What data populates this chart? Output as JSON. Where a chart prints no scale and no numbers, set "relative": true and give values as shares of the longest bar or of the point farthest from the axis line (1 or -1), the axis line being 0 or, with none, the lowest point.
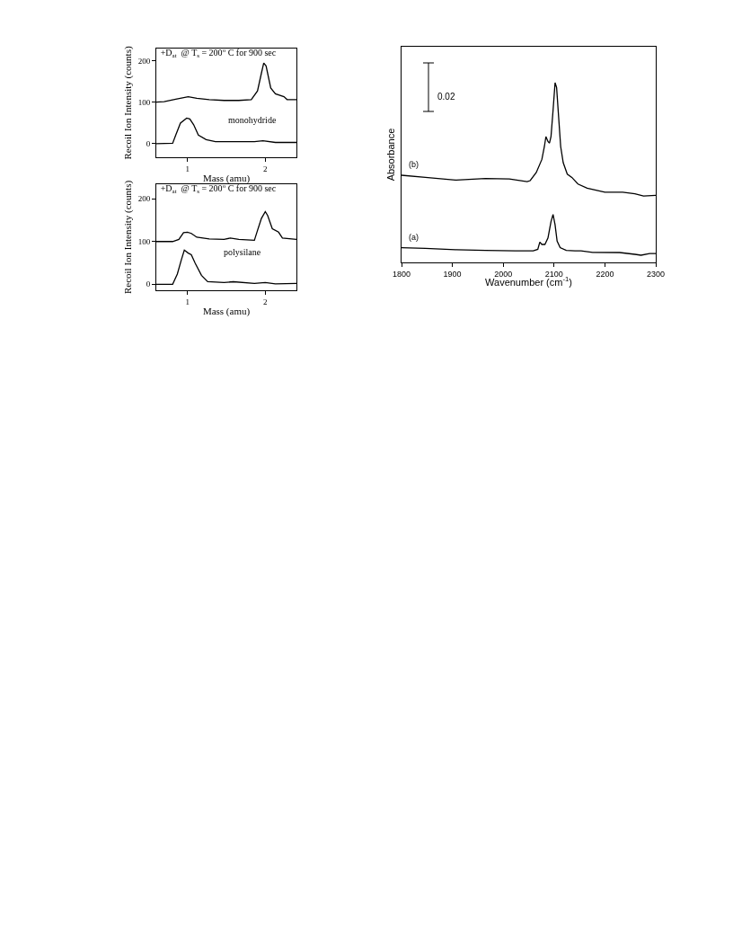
{
  "chart_data": [
    {
      "type": "line",
      "title": "+D$_{at}$  @ T$_{s}$ = 200$^{o}$ C for 900 sec",
      "xlabel": "Mass (amu)",
      "ylabel": "Recoil Ion Intensity (counts)",
      "xlim": [
        0.6,
        2.4
      ],
      "ylim": [
        -34,
        230
      ],
      "xticks": [
        1,
        2
      ],
      "yticks": [
        0,
        100,
        200
      ],
      "annotations": [
        "monohydride"
      ],
      "series": [
        {
          "color": "#000000",
          "x": [
            0.6,
            0.7,
            0.85,
            1.01,
            1.12,
            1.28,
            1.47,
            1.66,
            1.82,
            1.9,
            1.95,
            1.98,
            2.01,
            2.07,
            2.13,
            2.24,
            2.28,
            2.4
          ],
          "values": [
            100,
            101,
            107,
            113,
            109,
            106,
            104,
            104,
            106,
            127,
            170,
            195,
            188,
            134,
            120,
            113,
            106,
            106
          ]
        },
        {
          "color": "#000000",
          "x": [
            0.6,
            0.81,
            0.85,
            0.91,
            0.99,
            1.03,
            1.08,
            1.14,
            1.24,
            1.36,
            1.59,
            1.86,
            1.97,
            2.13,
            2.4
          ],
          "values": [
            -1,
            0,
            20,
            49,
            61,
            59,
            45,
            20,
            9,
            4,
            4,
            4,
            6,
            2,
            2
          ]
        }
      ]
    },
    {
      "type": "line",
      "title": "+D$_{at}$  @ T$_{s}$ = 200$^{o}$ C for 900 sec",
      "xlabel": "Mass (amu)",
      "ylabel": "Recoil Ion Intensity (counts)",
      "xlim": [
        0.6,
        2.4
      ],
      "ylim": [
        -14,
        234
      ],
      "xticks": [
        1,
        2
      ],
      "yticks": [
        0,
        100,
        200
      ],
      "annotations": [
        "polysilane"
      ],
      "series": [
        {
          "color": "#000000",
          "x": [
            0.6,
            0.81,
            0.89,
            0.95,
            1.0,
            1.05,
            1.12,
            1.28,
            1.47,
            1.55,
            1.66,
            1.86,
            1.9,
            1.95,
            2.0,
            2.03,
            2.09,
            2.17,
            2.22,
            2.4
          ],
          "values": [
            100,
            100,
            105,
            121,
            122,
            119,
            110,
            106,
            105,
            108,
            105,
            103,
            126,
            154,
            170,
            161,
            130,
            122,
            108,
            105
          ]
        },
        {
          "color": "#000000",
          "x": [
            0.6,
            0.81,
            0.87,
            0.92,
            0.96,
            1.01,
            1.05,
            1.1,
            1.18,
            1.26,
            1.47,
            1.59,
            1.86,
            2.0,
            2.13,
            2.4
          ],
          "values": [
            0,
            0,
            24,
            56,
            80,
            73,
            69,
            49,
            21,
            6,
            4,
            6,
            2,
            4,
            1,
            2
          ]
        }
      ]
    },
    {
      "type": "line",
      "relative": true,
      "xlabel": "Wavenumber (cm$^{-1}$)",
      "ylabel": "Absorbance",
      "xlim": [
        1800,
        2300
      ],
      "xticks": [
        1800,
        1900,
        2000,
        2100,
        2200,
        2300
      ],
      "tick_labels": "x",
      "annotations": [
        "0.02"
      ],
      "series": [
        {
          "name": "(b)",
          "color": "#000000",
          "x": [
            1800,
            1847,
            1906,
            1965,
            2012,
            2047,
            2053,
            2065,
            2076,
            2081,
            2084,
            2088,
            2091,
            2094,
            2098,
            2102,
            2105,
            2109,
            2113,
            2118,
            2126,
            2135,
            2147,
            2165,
            2200,
            2235,
            2259,
            2276,
            2300
          ],
          "values": [
            0.485,
            0.473,
            0.458,
            0.467,
            0.464,
            0.449,
            0.455,
            0.5,
            0.573,
            0.645,
            0.7,
            0.673,
            0.664,
            0.7,
            0.845,
            1.0,
            0.973,
            0.809,
            0.645,
            0.555,
            0.491,
            0.473,
            0.436,
            0.413,
            0.391,
            0.391,
            0.382,
            0.369,
            0.373
          ]
        },
        {
          "name": "(a)",
          "color": "#000000",
          "x": [
            1800,
            1847,
            1906,
            1965,
            2024,
            2059,
            2068,
            2072,
            2076,
            2082,
            2088,
            2094,
            2098,
            2102,
            2106,
            2112,
            2124,
            2141,
            2153,
            2176,
            2229,
            2259,
            2271,
            2288,
            2300
          ],
          "values": [
            0.082,
            0.078,
            0.071,
            0.067,
            0.064,
            0.064,
            0.073,
            0.113,
            0.1,
            0.1,
            0.136,
            0.227,
            0.267,
            0.209,
            0.118,
            0.082,
            0.067,
            0.064,
            0.064,
            0.056,
            0.055,
            0.045,
            0.04,
            0.049,
            0.049
          ]
        }
      ]
    }
  ]
}
